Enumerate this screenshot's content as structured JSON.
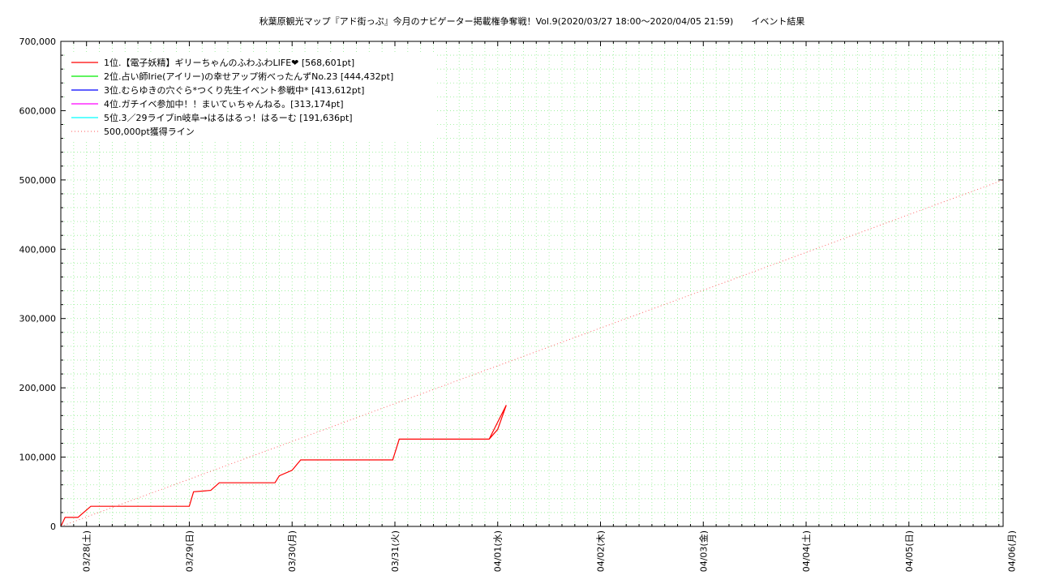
{
  "chart_data": {
    "type": "line",
    "title": "秋葉原観光マップ『アド街っぷ』今月のナビゲーター掲載権争奪戦！Vol.9(2020/03/27 18:00〜2020/04/05 21:59)　　イベント結果",
    "xlabel": "",
    "ylabel": "",
    "xlim": [
      "2020-03-27 18:00",
      "2020-04-05 22:00"
    ],
    "ylim": [
      0,
      700000
    ],
    "grid": true,
    "legend_position": "top-left",
    "y_ticks": [
      "0",
      "100,000",
      "200,000",
      "300,000",
      "400,000",
      "500,000",
      "600,000",
      "700,000"
    ],
    "x_ticks": [
      "03/28(土)",
      "03/29(日)",
      "03/30(月)",
      "03/31(火)",
      "04/01(水)",
      "04/02(木)",
      "04/03(金)",
      "04/04(土)",
      "04/05(日)",
      "04/06(月)"
    ],
    "series": [
      {
        "name": "1位.【電子妖精】ギリーちゃんのふわふわLIFE❤ [568,601pt]",
        "color": "#ff0000",
        "points": [
          [
            "2020-03-27 18:00",
            0
          ],
          [
            "2020-03-27 19:00",
            13000
          ],
          [
            "2020-03-27 22:00",
            13000
          ],
          [
            "2020-03-28 01:00",
            29000
          ],
          [
            "2020-03-28 23:59",
            29000
          ],
          [
            "2020-03-29 01:00",
            50000
          ],
          [
            "2020-03-29 05:00",
            52000
          ],
          [
            "2020-03-29 07:00",
            63000
          ],
          [
            "2020-03-29 20:00",
            63000
          ],
          [
            "2020-03-29 21:00",
            73000
          ],
          [
            "2020-03-30 00:00",
            81000
          ],
          [
            "2020-03-30 02:00",
            96000
          ],
          [
            "2020-03-30 23:30",
            96000
          ],
          [
            "2020-03-31 01:00",
            126000
          ],
          [
            "2020-03-31 22:00",
            126000
          ],
          [
            "2020-04-01 00:00",
            140000
          ],
          [
            "2020-04-01 02:00",
            175000
          ],
          [
            "2020-03-31 22:00",
            126000
          ]
        ]
      },
      {
        "name": "2位.占い師Irie(アイリー)の幸せアップ術べったんずNo.23 [444,432pt]",
        "color": "#00ee00",
        "points": []
      },
      {
        "name": "3位.むらゆきの穴ぐら*つくり先生イベント参戦中* [413,612pt]",
        "color": "#0000ff",
        "points": []
      },
      {
        "name": "4位.ガチイベ参加中！！まいてぃちゃんねる。[313,174pt]",
        "color": "#ff00ff",
        "points": []
      },
      {
        "name": "5位.3／29ライブin岐阜→はるはるっ！はるーむ [191,636pt]",
        "color": "#00ffff",
        "points": []
      },
      {
        "name": "500,000pt獲得ライン",
        "color": "#ff5555",
        "dashed": true,
        "points": [
          [
            "2020-03-27 18:00",
            0
          ],
          [
            "2020-04-05 22:00",
            500000
          ]
        ]
      }
    ]
  }
}
